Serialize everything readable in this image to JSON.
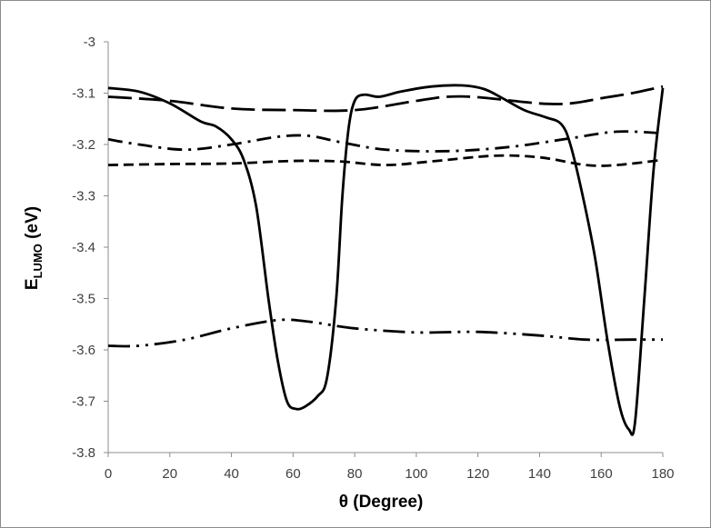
{
  "chart_data": {
    "type": "line",
    "title": "",
    "xlabel": "θ (Degree)",
    "ylabel_main": "E",
    "ylabel_sub": "LUMO",
    "ylabel_unit": " (eV)",
    "xlim": [
      0,
      180
    ],
    "ylim": [
      -3.8,
      -3
    ],
    "xticks": [
      0,
      20,
      40,
      60,
      80,
      100,
      120,
      140,
      160,
      180
    ],
    "yticks": [
      -3,
      -3.1,
      -3.2,
      -3.3,
      -3.4,
      -3.5,
      -3.6,
      -3.7,
      -3.8
    ],
    "grid": false,
    "legend": "none",
    "series": [
      {
        "style": "solid",
        "color": "#000000",
        "points": [
          [
            0,
            -3.09
          ],
          [
            10,
            -3.097
          ],
          [
            20,
            -3.12
          ],
          [
            30,
            -3.155
          ],
          [
            35,
            -3.165
          ],
          [
            40,
            -3.19
          ],
          [
            44,
            -3.23
          ],
          [
            48,
            -3.32
          ],
          [
            52,
            -3.5
          ],
          [
            55,
            -3.62
          ],
          [
            58,
            -3.7
          ],
          [
            61,
            -3.715
          ],
          [
            64,
            -3.71
          ],
          [
            68,
            -3.69
          ],
          [
            71,
            -3.655
          ],
          [
            74,
            -3.5
          ],
          [
            76,
            -3.3
          ],
          [
            78,
            -3.17
          ],
          [
            80,
            -3.115
          ],
          [
            83,
            -3.103
          ],
          [
            88,
            -3.107
          ],
          [
            95,
            -3.097
          ],
          [
            105,
            -3.087
          ],
          [
            115,
            -3.085
          ],
          [
            122,
            -3.092
          ],
          [
            128,
            -3.11
          ],
          [
            135,
            -3.133
          ],
          [
            142,
            -3.147
          ],
          [
            147,
            -3.16
          ],
          [
            150,
            -3.2
          ],
          [
            154,
            -3.3
          ],
          [
            158,
            -3.42
          ],
          [
            162,
            -3.58
          ],
          [
            166,
            -3.71
          ],
          [
            169,
            -3.755
          ],
          [
            171,
            -3.74
          ],
          [
            174,
            -3.5
          ],
          [
            177,
            -3.25
          ],
          [
            180,
            -3.09
          ]
        ]
      },
      {
        "style": "long-dash",
        "color": "#000000",
        "points": [
          [
            0,
            -3.107
          ],
          [
            20,
            -3.115
          ],
          [
            40,
            -3.13
          ],
          [
            60,
            -3.133
          ],
          [
            80,
            -3.133
          ],
          [
            100,
            -3.115
          ],
          [
            110,
            -3.107
          ],
          [
            120,
            -3.108
          ],
          [
            140,
            -3.12
          ],
          [
            150,
            -3.12
          ],
          [
            160,
            -3.11
          ],
          [
            170,
            -3.1
          ],
          [
            180,
            -3.087
          ]
        ]
      },
      {
        "style": "dash-dot",
        "color": "#000000",
        "points": [
          [
            0,
            -3.19
          ],
          [
            10,
            -3.2
          ],
          [
            25,
            -3.21
          ],
          [
            40,
            -3.2
          ],
          [
            55,
            -3.185
          ],
          [
            65,
            -3.183
          ],
          [
            75,
            -3.195
          ],
          [
            90,
            -3.21
          ],
          [
            110,
            -3.213
          ],
          [
            130,
            -3.205
          ],
          [
            150,
            -3.188
          ],
          [
            165,
            -3.175
          ],
          [
            180,
            -3.178
          ]
        ]
      },
      {
        "style": "short-dash",
        "color": "#000000",
        "points": [
          [
            0,
            -3.24
          ],
          [
            20,
            -3.238
          ],
          [
            40,
            -3.237
          ],
          [
            60,
            -3.232
          ],
          [
            75,
            -3.233
          ],
          [
            90,
            -3.24
          ],
          [
            105,
            -3.233
          ],
          [
            125,
            -3.222
          ],
          [
            140,
            -3.225
          ],
          [
            155,
            -3.24
          ],
          [
            165,
            -3.24
          ],
          [
            180,
            -3.23
          ]
        ]
      },
      {
        "style": "dash-dot-dot",
        "color": "#000000",
        "points": [
          [
            0,
            -3.592
          ],
          [
            10,
            -3.592
          ],
          [
            25,
            -3.58
          ],
          [
            40,
            -3.558
          ],
          [
            55,
            -3.542
          ],
          [
            65,
            -3.545
          ],
          [
            80,
            -3.558
          ],
          [
            100,
            -3.566
          ],
          [
            120,
            -3.565
          ],
          [
            140,
            -3.572
          ],
          [
            155,
            -3.58
          ],
          [
            170,
            -3.58
          ],
          [
            180,
            -3.58
          ]
        ]
      }
    ]
  }
}
